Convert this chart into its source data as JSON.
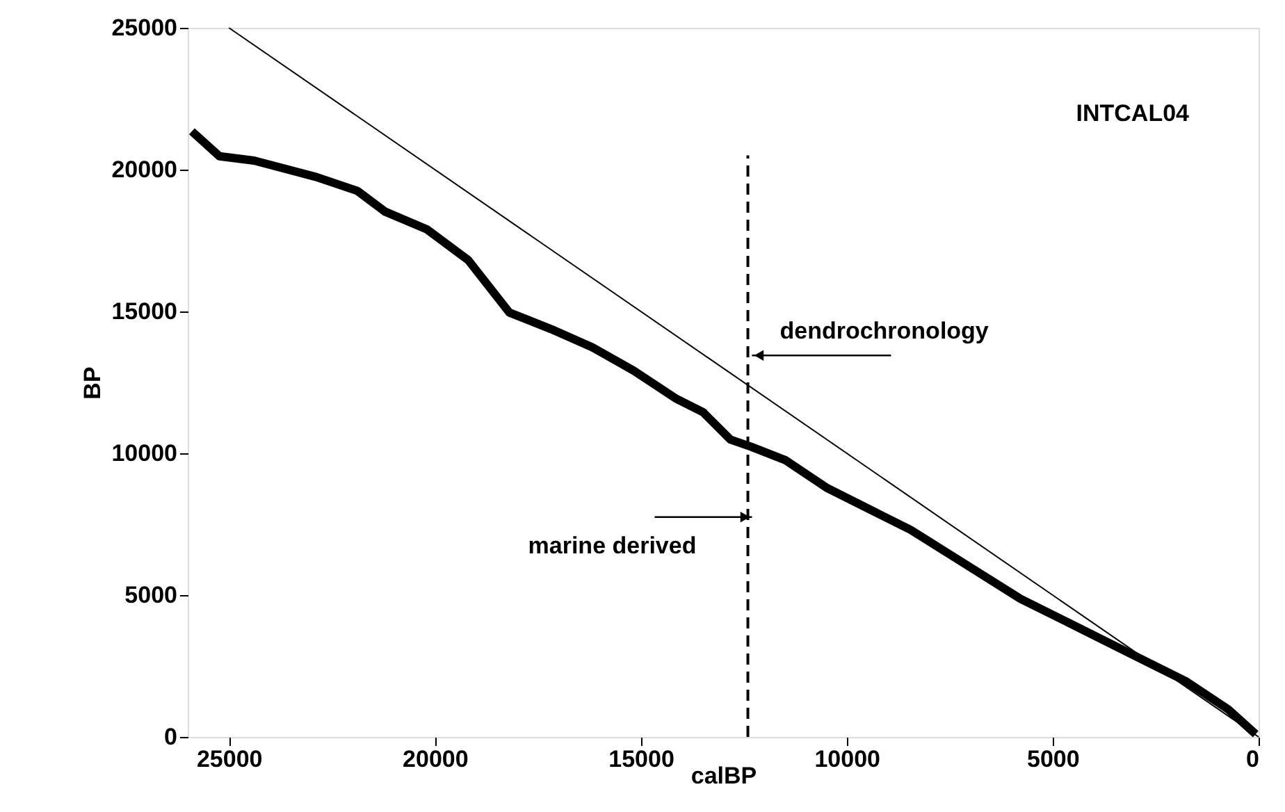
{
  "chart_data": {
    "type": "line",
    "title": "INTCAL04",
    "xlabel": "calBP",
    "ylabel": "BP",
    "xlim": [
      26000,
      0
    ],
    "xticks": [
      25000,
      20000,
      15000,
      10000,
      5000,
      0
    ],
    "ylim": [
      0,
      25000
    ],
    "yticks": [
      0,
      5000,
      10000,
      15000,
      20000,
      25000
    ],
    "grid": false,
    "series": [
      {
        "color": "#000000",
        "x": [
          25900,
          25230,
          24390,
          22880,
          21880,
          21210,
          20200,
          19190,
          18190,
          17180,
          16180,
          15170,
          14160,
          13490,
          12820,
          12320,
          11480,
          10470,
          9470,
          8460,
          7120,
          5780,
          4440,
          3090,
          1750,
          740,
          70
        ],
        "values": [
          21350,
          20470,
          20320,
          19740,
          19250,
          18520,
          17900,
          16810,
          14960,
          14380,
          13740,
          12910,
          11940,
          11450,
          10480,
          10230,
          9750,
          8770,
          8040,
          7310,
          6090,
          4870,
          3900,
          2920,
          1950,
          975,
          100
        ]
      },
      {
        "color": "#000000",
        "x": [
          25000,
          0
        ],
        "values": [
          25000,
          0
        ]
      },
      {
        "color": "#000000",
        "line_style": "dashed",
        "x": [
          12400,
          12400
        ],
        "values": [
          0,
          20500
        ]
      }
    ],
    "annotations": [
      {
        "text": "dendrochronology",
        "x": 12300,
        "y": 13450
      },
      {
        "text": "marine derived",
        "x": 12300,
        "y": 7750
      }
    ]
  }
}
